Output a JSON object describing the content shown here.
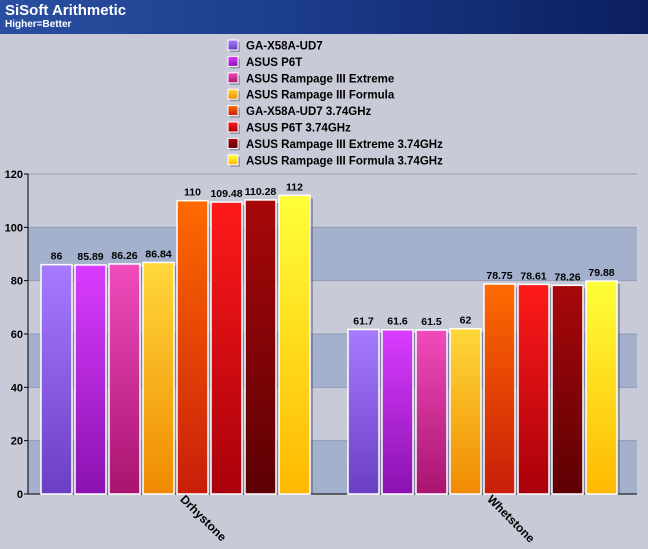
{
  "header": {
    "title": "SiSoft Arithmetic",
    "subtitle": "Higher=Better"
  },
  "chart_data": {
    "type": "bar",
    "title": "SiSoft Arithmetic",
    "subtitle": "Higher=Better",
    "categories": [
      "Drhystone",
      "Whetstone"
    ],
    "ylim": [
      0,
      120
    ],
    "yticks": [
      0,
      20,
      40,
      60,
      80,
      100,
      120
    ],
    "grid": true,
    "legend_position": "top-center",
    "series": [
      {
        "name": "GA-X58A-UD7",
        "values": [
          86,
          61.7
        ],
        "labels": [
          "86",
          "61.7"
        ],
        "color_top": "#a77bff",
        "color_bottom": "#6a3fc4"
      },
      {
        "name": "ASUS P6T",
        "values": [
          85.89,
          61.6
        ],
        "labels": [
          "85.89",
          "61.6"
        ],
        "color_top": "#d93cff",
        "color_bottom": "#8a12b0"
      },
      {
        "name": "ASUS Rampage III Extreme",
        "values": [
          86.26,
          61.5
        ],
        "labels": [
          "86.26",
          "61.5"
        ],
        "color_top": "#f04cbc",
        "color_bottom": "#a81470"
      },
      {
        "name": "ASUS Rampage III Formula",
        "values": [
          86.84,
          62
        ],
        "labels": [
          "86.84",
          "62"
        ],
        "color_top": "#ffd83a",
        "color_bottom": "#f08a00"
      },
      {
        "name": "GA-X58A-UD7 3.74GHz",
        "values": [
          110,
          78.75
        ],
        "labels": [
          "110",
          "78.75"
        ],
        "color_top": "#ff6a00",
        "color_bottom": "#c81e0a"
      },
      {
        "name": "ASUS P6T 3.74GHz",
        "values": [
          109.48,
          78.61
        ],
        "labels": [
          "109.48",
          "78.61"
        ],
        "color_top": "#ff1a1a",
        "color_bottom": "#a8000a"
      },
      {
        "name": "ASUS Rampage III Extreme 3.74GHz",
        "values": [
          110.28,
          78.26
        ],
        "labels": [
          "110.28",
          "78.26"
        ],
        "color_top": "#a8080a",
        "color_bottom": "#5c0003"
      },
      {
        "name": "ASUS Rampage III Formula 3.74GHz",
        "values": [
          112,
          79.88
        ],
        "labels": [
          "112",
          "79.88"
        ],
        "color_top": "#ffff3a",
        "color_bottom": "#ffb800"
      }
    ]
  }
}
